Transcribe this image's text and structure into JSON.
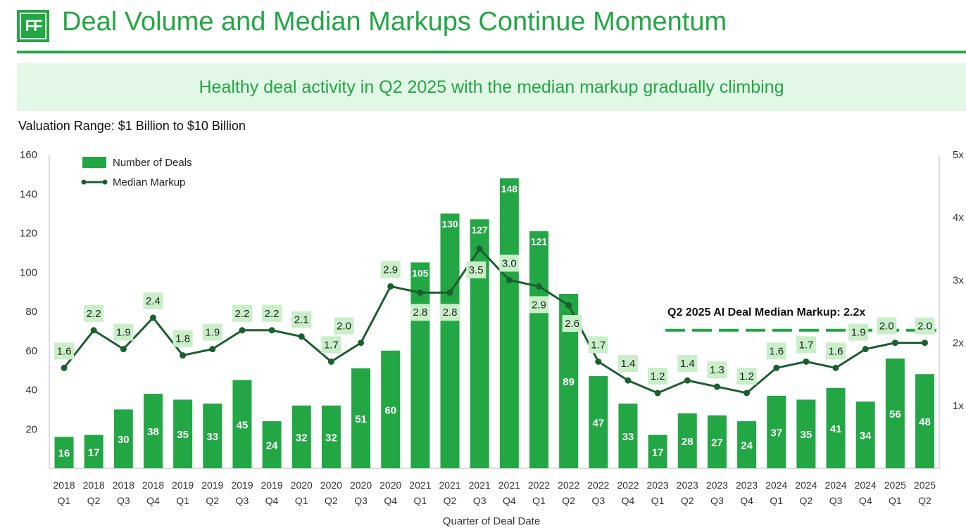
{
  "header": {
    "logo_text": "FF",
    "title": "Deal Volume and Median Markups Continue Momentum",
    "banner": "Healthy deal activity in Q2 2025 with the median markup gradually climbing",
    "subtitle": "Valuation Range: $1 Billion to $10 Billion"
  },
  "colors": {
    "brand_green": "#22a744",
    "bar_green": "#22a744",
    "line_dark_green": "#1b5e30",
    "label_bg": "#c9efc9",
    "banner_bg": "#e3f7e6"
  },
  "chart_data": {
    "type": "bar",
    "title": "",
    "xlabel": "Quarter of Deal Date",
    "ylabel_left": "",
    "ylabel_right": "",
    "left_axis": {
      "ylim": [
        0,
        160
      ],
      "ticks": [
        20,
        40,
        60,
        80,
        100,
        120,
        140,
        160
      ]
    },
    "right_axis": {
      "ylim": [
        0,
        5
      ],
      "ticks": [
        "1x",
        "2x",
        "3x",
        "4x",
        "5x"
      ]
    },
    "grid": false,
    "legend_placement": "top-left",
    "categories": [
      [
        "2018",
        "Q1"
      ],
      [
        "2018",
        "Q2"
      ],
      [
        "2018",
        "Q3"
      ],
      [
        "2018",
        "Q4"
      ],
      [
        "2019",
        "Q1"
      ],
      [
        "2019",
        "Q2"
      ],
      [
        "2019",
        "Q3"
      ],
      [
        "2019",
        "Q4"
      ],
      [
        "2020",
        "Q1"
      ],
      [
        "2020",
        "Q2"
      ],
      [
        "2020",
        "Q3"
      ],
      [
        "2020",
        "Q4"
      ],
      [
        "2021",
        "Q1"
      ],
      [
        "2021",
        "Q2"
      ],
      [
        "2021",
        "Q3"
      ],
      [
        "2021",
        "Q4"
      ],
      [
        "2022",
        "Q1"
      ],
      [
        "2022",
        "Q2"
      ],
      [
        "2022",
        "Q3"
      ],
      [
        "2022",
        "Q4"
      ],
      [
        "2023",
        "Q1"
      ],
      [
        "2023",
        "Q2"
      ],
      [
        "2023",
        "Q3"
      ],
      [
        "2023",
        "Q4"
      ],
      [
        "2024",
        "Q1"
      ],
      [
        "2024",
        "Q2"
      ],
      [
        "2024",
        "Q3"
      ],
      [
        "2024",
        "Q4"
      ],
      [
        "2025",
        "Q1"
      ],
      [
        "2025",
        "Q2"
      ]
    ],
    "series": [
      {
        "name": "Number of Deals",
        "type": "bar",
        "axis": "left",
        "values": [
          16,
          17,
          30,
          38,
          35,
          33,
          45,
          24,
          32,
          32,
          51,
          60,
          105,
          130,
          127,
          148,
          121,
          89,
          47,
          33,
          17,
          28,
          27,
          24,
          37,
          35,
          41,
          34,
          56,
          48
        ]
      },
      {
        "name": "Median Markup",
        "type": "line",
        "axis": "right",
        "values": [
          1.6,
          2.2,
          1.9,
          2.4,
          1.8,
          1.9,
          2.2,
          2.2,
          2.1,
          1.7,
          2.0,
          2.9,
          2.8,
          2.8,
          3.5,
          3.0,
          2.9,
          2.6,
          1.7,
          1.4,
          1.2,
          1.4,
          1.3,
          1.2,
          1.6,
          1.7,
          1.6,
          1.9,
          2.0,
          2.0
        ]
      }
    ],
    "annotation": {
      "text": "Q2 2025 AI Deal Median Markup: 2.2x",
      "value": 2.2,
      "axis": "right"
    }
  }
}
